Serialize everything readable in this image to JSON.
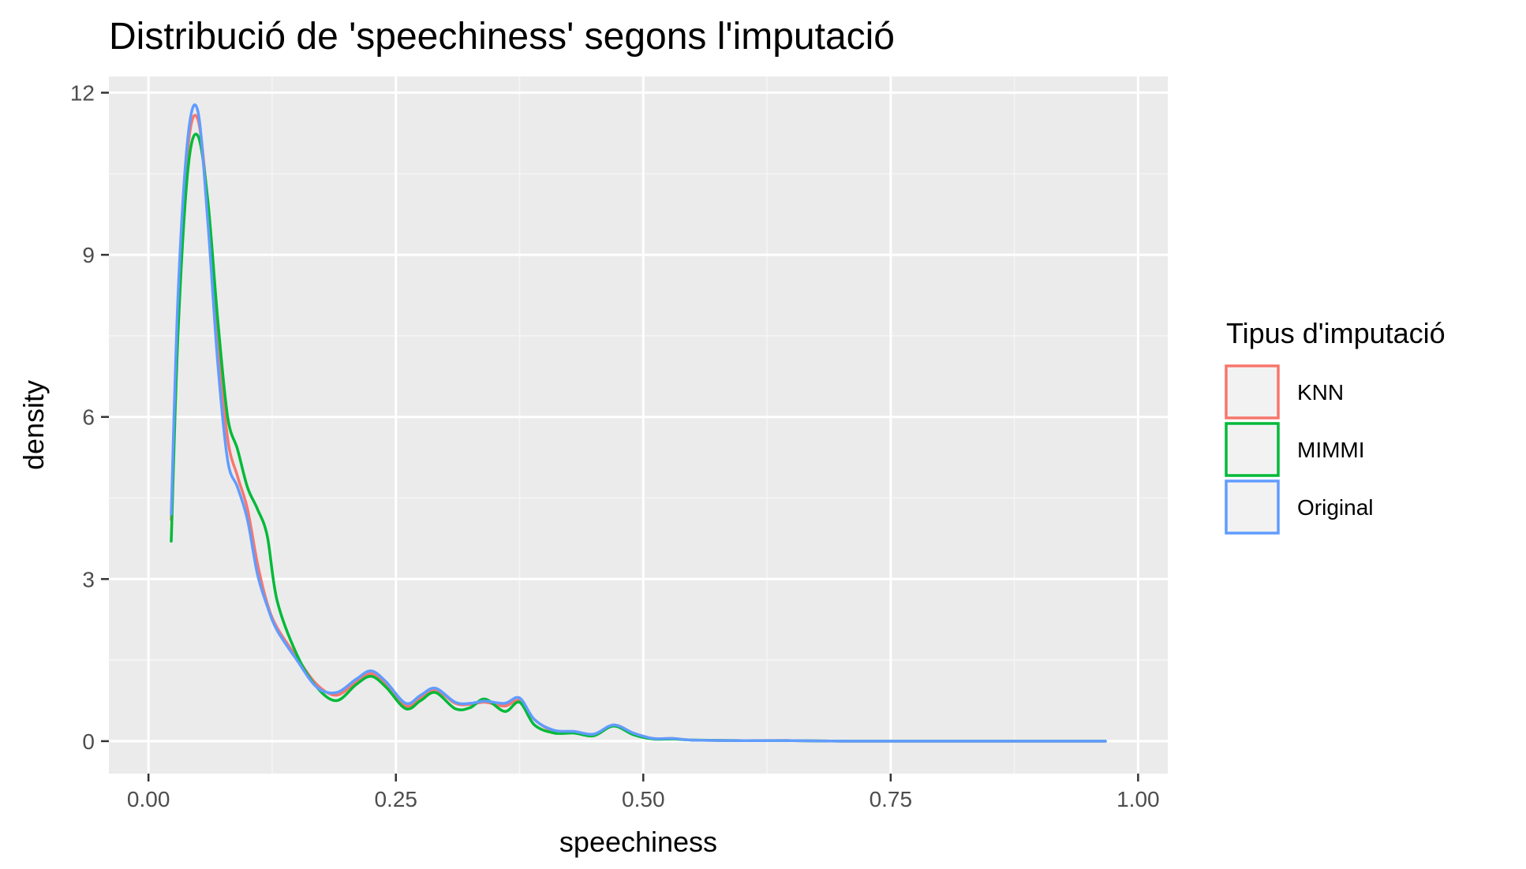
{
  "chart_data": {
    "type": "line",
    "title": "Distribució de 'speechiness' segons l'imputació",
    "xlabel": "speechiness",
    "ylabel": "density",
    "xlim": [
      -0.04,
      1.03
    ],
    "ylim": [
      -0.6,
      12.3
    ],
    "x_ticks": [
      0.0,
      0.25,
      0.5,
      0.75,
      1.0
    ],
    "x_tick_labels": [
      "0.00",
      "0.25",
      "0.50",
      "0.75",
      "1.00"
    ],
    "y_ticks": [
      0,
      3,
      6,
      9,
      12
    ],
    "y_tick_labels": [
      "0",
      "3",
      "6",
      "9",
      "12"
    ],
    "grid": true,
    "legend": {
      "title": "Tipus d'imputació",
      "placement": "right"
    },
    "series": [
      {
        "name": "KNN",
        "color": "#F8766D",
        "x": [
          0.023,
          0.03,
          0.04,
          0.05,
          0.06,
          0.07,
          0.08,
          0.09,
          0.1,
          0.11,
          0.12,
          0.13,
          0.15,
          0.17,
          0.19,
          0.21,
          0.225,
          0.24,
          0.26,
          0.275,
          0.29,
          0.31,
          0.325,
          0.34,
          0.36,
          0.375,
          0.39,
          0.41,
          0.43,
          0.45,
          0.47,
          0.49,
          0.51,
          0.53,
          0.55,
          0.6,
          0.65,
          0.7,
          0.75,
          0.8,
          0.85,
          0.9,
          0.967
        ],
        "y": [
          4.1,
          8.0,
          11.0,
          11.5,
          9.9,
          7.5,
          5.6,
          4.9,
          4.3,
          3.3,
          2.55,
          2.1,
          1.55,
          1.05,
          0.85,
          1.1,
          1.25,
          1.05,
          0.65,
          0.8,
          0.95,
          0.7,
          0.68,
          0.72,
          0.65,
          0.75,
          0.4,
          0.18,
          0.17,
          0.12,
          0.3,
          0.15,
          0.05,
          0.05,
          0.02,
          0.01,
          0.01,
          0.0,
          0.0,
          0.0,
          0.0,
          0.0,
          0.0
        ]
      },
      {
        "name": "MIMMI",
        "color": "#00BA38",
        "x": [
          0.023,
          0.03,
          0.04,
          0.05,
          0.06,
          0.07,
          0.08,
          0.09,
          0.1,
          0.11,
          0.12,
          0.13,
          0.15,
          0.17,
          0.19,
          0.21,
          0.225,
          0.24,
          0.26,
          0.275,
          0.29,
          0.31,
          0.325,
          0.34,
          0.36,
          0.375,
          0.39,
          0.41,
          0.43,
          0.45,
          0.47,
          0.49,
          0.51,
          0.53,
          0.55,
          0.6,
          0.65,
          0.7,
          0.75,
          0.8,
          0.85,
          0.9,
          0.967
        ],
        "y": [
          3.7,
          7.6,
          10.6,
          11.2,
          10.0,
          7.8,
          6.0,
          5.4,
          4.7,
          4.3,
          3.8,
          2.6,
          1.6,
          1.0,
          0.75,
          1.05,
          1.2,
          1.0,
          0.6,
          0.75,
          0.9,
          0.6,
          0.62,
          0.78,
          0.55,
          0.72,
          0.3,
          0.15,
          0.15,
          0.1,
          0.28,
          0.12,
          0.04,
          0.04,
          0.02,
          0.01,
          0.01,
          0.0,
          0.0,
          0.0,
          0.0,
          0.0,
          0.0
        ]
      },
      {
        "name": "Original",
        "color": "#619CFF",
        "x": [
          0.023,
          0.03,
          0.04,
          0.05,
          0.06,
          0.07,
          0.08,
          0.09,
          0.1,
          0.11,
          0.12,
          0.13,
          0.15,
          0.17,
          0.19,
          0.21,
          0.225,
          0.24,
          0.26,
          0.275,
          0.29,
          0.31,
          0.325,
          0.34,
          0.36,
          0.375,
          0.39,
          0.41,
          0.43,
          0.45,
          0.47,
          0.49,
          0.51,
          0.53,
          0.55,
          0.6,
          0.65,
          0.7,
          0.75,
          0.8,
          0.85,
          0.9,
          0.967
        ],
        "y": [
          4.2,
          8.3,
          11.2,
          11.65,
          9.6,
          7.0,
          5.2,
          4.7,
          4.1,
          3.1,
          2.5,
          2.05,
          1.5,
          1.0,
          0.9,
          1.15,
          1.3,
          1.1,
          0.7,
          0.85,
          0.98,
          0.72,
          0.7,
          0.74,
          0.7,
          0.8,
          0.4,
          0.2,
          0.18,
          0.13,
          0.3,
          0.15,
          0.05,
          0.05,
          0.02,
          0.01,
          0.01,
          0.0,
          0.0,
          0.0,
          0.0,
          0.0,
          0.0
        ]
      }
    ]
  },
  "colors": {
    "panel_background": "#EBEBEB",
    "grid_major": "#FFFFFF",
    "grid_minor": "#F5F5F5",
    "legend_key_background": "#F2F2F2",
    "tick_color": "#333333"
  }
}
